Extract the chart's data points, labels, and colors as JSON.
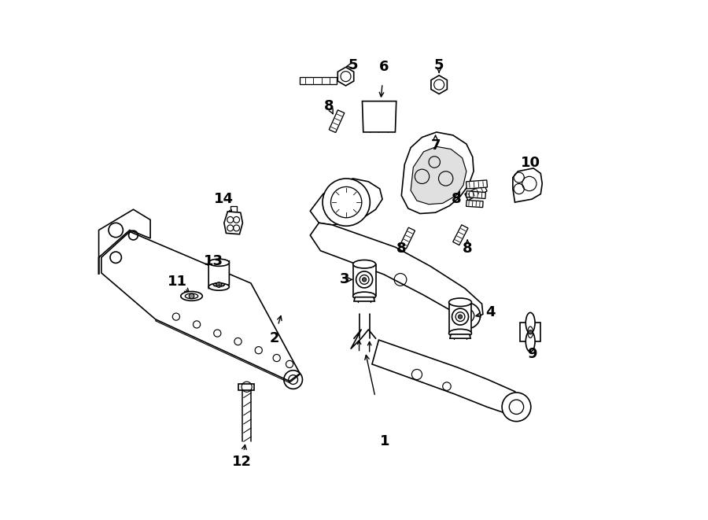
{
  "title": "",
  "background_color": "#ffffff",
  "line_color": "#000000",
  "line_width": 1.2,
  "fig_width": 9.0,
  "fig_height": 6.61
}
